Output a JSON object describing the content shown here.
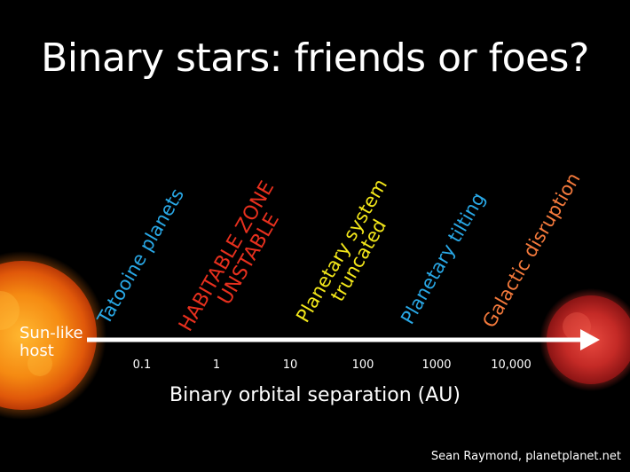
{
  "title": "Binary stars: friends or foes?",
  "host": {
    "line1": "Sun-like",
    "line2": "host"
  },
  "axis": {
    "label": "Binary orbital separation (AU)",
    "ticks": [
      "0.1",
      "1",
      "10",
      "100",
      "1000",
      "10,000"
    ]
  },
  "regimes": [
    {
      "lines": [
        "Tatooine planets"
      ],
      "color": "#29a8e6"
    },
    {
      "lines": [
        "HABITABLE ZONE",
        "UNSTABLE"
      ],
      "color": "#e8301e"
    },
    {
      "lines": [
        "Planetary system",
        "truncated"
      ],
      "color": "#f4e81a"
    },
    {
      "lines": [
        "Planetary tilting"
      ],
      "color": "#29a8e6"
    },
    {
      "lines": [
        "Galactic disruption"
      ],
      "color": "#f57a3c"
    }
  ],
  "credit": "Sean Raymond, planetplanet.net"
}
